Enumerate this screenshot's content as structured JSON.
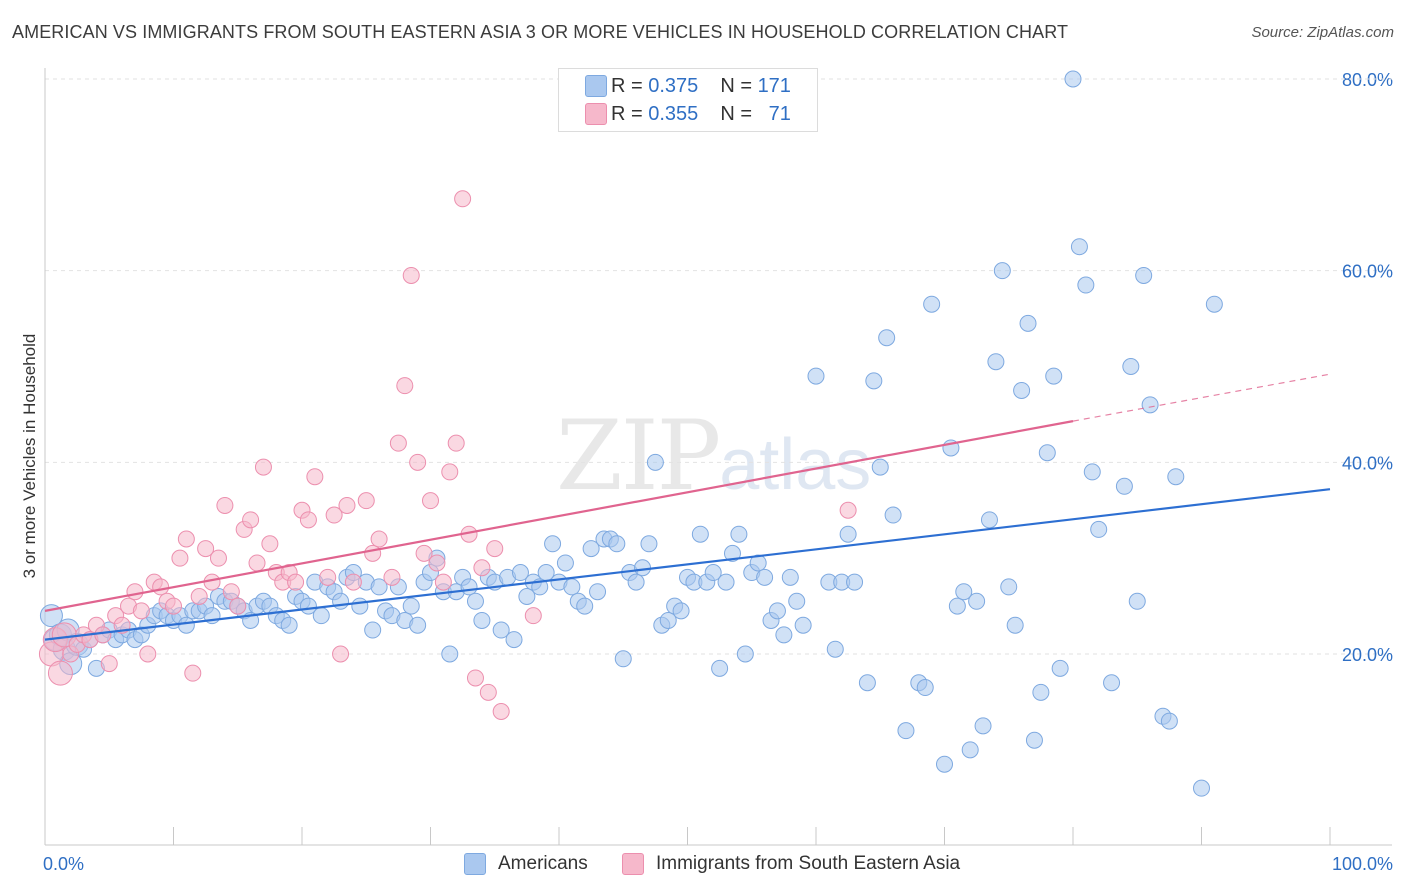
{
  "title": "AMERICAN VS IMMIGRANTS FROM SOUTH EASTERN ASIA 3 OR MORE VEHICLES IN HOUSEHOLD CORRELATION CHART",
  "source": "Source: ZipAtlas.com",
  "watermark": {
    "zip": "ZIP",
    "atlas": "atlas"
  },
  "legend": {
    "rows": [
      {
        "r_label": "R =",
        "r_value": "0.375",
        "n_label": "N =",
        "n_value": "171",
        "color": "#aac8ef"
      },
      {
        "r_label": "R =",
        "r_value": "0.355",
        "n_label": "N =",
        "n_value": "71",
        "color": "#f6b8cb"
      }
    ]
  },
  "bottom_legend": [
    {
      "label": "Americans",
      "color": "#aac8ef"
    },
    {
      "label": "Immigrants from South Eastern Asia",
      "color": "#f6b8cb"
    }
  ],
  "colors": {
    "blue_fill": "#aac8ef",
    "blue_stroke": "#7ea9e0",
    "blue_line": "#2d6fd2",
    "pink_fill": "#f6b8cb",
    "pink_stroke": "#ec8fae",
    "pink_line": "#e0648f",
    "tick_text": "#2f6fc4",
    "grid": "#e2e2e2"
  },
  "chart_data": {
    "type": "scatter",
    "title": "AMERICAN VS IMMIGRANTS FROM SOUTH EASTERN ASIA 3 OR MORE VEHICLES IN HOUSEHOLD CORRELATION CHART",
    "xlabel": "",
    "ylabel": "3 or more Vehicles in Household",
    "xlim": [
      0,
      100
    ],
    "ylim": [
      0,
      83
    ],
    "x_ticks": [
      "0.0%",
      "100.0%"
    ],
    "y_ticks": [
      {
        "value": 20,
        "label": "20.0%"
      },
      {
        "value": 40,
        "label": "40.0%"
      },
      {
        "value": 60,
        "label": "60.0%"
      },
      {
        "value": 80,
        "label": "80.0%"
      }
    ],
    "grid": true,
    "legend_position": "top-center",
    "series": [
      {
        "name": "Americans",
        "color": "#aac8ef",
        "trend": {
          "x": [
            0,
            100
          ],
          "y": [
            21.5,
            37.2
          ]
        },
        "points": [
          [
            0.5,
            24
          ],
          [
            0.8,
            21.5
          ],
          [
            1.2,
            22
          ],
          [
            1.5,
            20.5
          ],
          [
            1.8,
            22.5
          ],
          [
            2,
            19
          ],
          [
            2.5,
            21
          ],
          [
            3,
            20.5
          ],
          [
            3.5,
            21.5
          ],
          [
            4,
            18.5
          ],
          [
            4.5,
            22
          ],
          [
            5,
            22.5
          ],
          [
            5.5,
            21.5
          ],
          [
            6,
            22
          ],
          [
            6.5,
            22.5
          ],
          [
            7,
            21.5
          ],
          [
            7.5,
            22
          ],
          [
            8,
            23
          ],
          [
            8.5,
            24
          ],
          [
            9,
            24.5
          ],
          [
            9.5,
            24
          ],
          [
            10,
            23.5
          ],
          [
            10.5,
            24
          ],
          [
            11,
            23
          ],
          [
            11.5,
            24.5
          ],
          [
            12,
            24.5
          ],
          [
            12.5,
            25
          ],
          [
            13,
            24
          ],
          [
            13.5,
            26
          ],
          [
            14,
            25.5
          ],
          [
            14.5,
            25.5
          ],
          [
            15,
            25
          ],
          [
            15.5,
            24.5
          ],
          [
            16,
            23.5
          ],
          [
            16.5,
            25
          ],
          [
            17,
            25.5
          ],
          [
            17.5,
            25
          ],
          [
            18,
            24
          ],
          [
            18.5,
            23.5
          ],
          [
            19,
            23
          ],
          [
            19.5,
            26
          ],
          [
            20,
            25.5
          ],
          [
            20.5,
            25
          ],
          [
            21,
            27.5
          ],
          [
            21.5,
            24
          ],
          [
            22,
            27
          ],
          [
            22.5,
            26.5
          ],
          [
            23,
            25.5
          ],
          [
            23.5,
            28
          ],
          [
            24,
            28.5
          ],
          [
            24.5,
            25
          ],
          [
            25,
            27.5
          ],
          [
            25.5,
            22.5
          ],
          [
            26,
            27
          ],
          [
            26.5,
            24.5
          ],
          [
            27,
            24
          ],
          [
            27.5,
            27
          ],
          [
            28,
            23.5
          ],
          [
            28.5,
            25
          ],
          [
            29,
            23
          ],
          [
            29.5,
            27.5
          ],
          [
            30,
            28.5
          ],
          [
            30.5,
            30
          ],
          [
            31,
            26.5
          ],
          [
            31.5,
            20
          ],
          [
            32,
            26.5
          ],
          [
            32.5,
            28
          ],
          [
            33,
            27
          ],
          [
            33.5,
            25.5
          ],
          [
            34,
            23.5
          ],
          [
            34.5,
            28
          ],
          [
            35,
            27.5
          ],
          [
            35.5,
            22.5
          ],
          [
            36,
            28
          ],
          [
            36.5,
            21.5
          ],
          [
            37,
            28.5
          ],
          [
            37.5,
            26
          ],
          [
            38,
            27.5
          ],
          [
            38.5,
            27
          ],
          [
            39,
            28.5
          ],
          [
            39.5,
            31.5
          ],
          [
            40,
            27.5
          ],
          [
            40.5,
            29.5
          ],
          [
            41,
            27
          ],
          [
            41.5,
            25.5
          ],
          [
            42,
            25
          ],
          [
            42.5,
            31
          ],
          [
            43,
            26.5
          ],
          [
            43.5,
            32
          ],
          [
            44,
            32
          ],
          [
            44.5,
            31.5
          ],
          [
            45,
            19.5
          ],
          [
            45.5,
            28.5
          ],
          [
            46,
            27.5
          ],
          [
            46.5,
            29
          ],
          [
            47,
            31.5
          ],
          [
            47.5,
            40
          ],
          [
            48,
            23
          ],
          [
            48.5,
            23.5
          ],
          [
            49,
            25
          ],
          [
            49.5,
            24.5
          ],
          [
            50,
            28
          ],
          [
            50.5,
            27.5
          ],
          [
            51,
            32.5
          ],
          [
            51.5,
            27.5
          ],
          [
            52,
            28.5
          ],
          [
            52.5,
            18.5
          ],
          [
            53,
            27.5
          ],
          [
            53.5,
            30.5
          ],
          [
            54,
            32.5
          ],
          [
            54.5,
            20
          ],
          [
            55,
            28.5
          ],
          [
            55.5,
            29.5
          ],
          [
            56,
            28
          ],
          [
            56.5,
            23.5
          ],
          [
            57,
            24.5
          ],
          [
            57.5,
            22
          ],
          [
            58,
            28
          ],
          [
            58.5,
            25.5
          ],
          [
            59,
            23
          ],
          [
            60,
            49
          ],
          [
            61,
            27.5
          ],
          [
            61.5,
            20.5
          ],
          [
            62,
            27.5
          ],
          [
            62.5,
            32.5
          ],
          [
            63,
            27.5
          ],
          [
            64,
            17
          ],
          [
            64.5,
            48.5
          ],
          [
            65,
            39.5
          ],
          [
            65.5,
            53
          ],
          [
            66,
            34.5
          ],
          [
            67,
            12
          ],
          [
            68,
            17
          ],
          [
            68.5,
            16.5
          ],
          [
            69,
            56.5
          ],
          [
            70,
            8.5
          ],
          [
            70.5,
            41.5
          ],
          [
            71,
            25
          ],
          [
            71.5,
            26.5
          ],
          [
            72,
            10
          ],
          [
            72.5,
            25.5
          ],
          [
            73,
            12.5
          ],
          [
            73.5,
            34
          ],
          [
            74,
            50.5
          ],
          [
            74.5,
            60
          ],
          [
            75,
            27
          ],
          [
            75.5,
            23
          ],
          [
            76,
            47.5
          ],
          [
            76.5,
            54.5
          ],
          [
            77,
            11
          ],
          [
            77.5,
            16
          ],
          [
            78,
            41
          ],
          [
            78.5,
            49
          ],
          [
            79,
            18.5
          ],
          [
            80,
            80
          ],
          [
            80.5,
            62.5
          ],
          [
            81,
            58.5
          ],
          [
            81.5,
            39
          ],
          [
            82,
            33
          ],
          [
            83,
            17
          ],
          [
            84,
            37.5
          ],
          [
            84.5,
            50
          ],
          [
            85,
            25.5
          ],
          [
            85.5,
            59.5
          ],
          [
            86,
            46
          ],
          [
            87,
            13.5
          ],
          [
            87.5,
            13
          ],
          [
            88,
            38.5
          ],
          [
            90,
            6
          ],
          [
            91,
            56.5
          ]
        ]
      },
      {
        "name": "Immigrants from South Eastern Asia",
        "color": "#f6b8cb",
        "trend": {
          "x": [
            0,
            80
          ],
          "y": [
            24.5,
            44.3
          ]
        },
        "trend_dashed": {
          "x": [
            80,
            100
          ],
          "y": [
            44.3,
            49.2
          ]
        },
        "points": [
          [
            0.5,
            20
          ],
          [
            0.8,
            21.5
          ],
          [
            1.2,
            18
          ],
          [
            1.5,
            22
          ],
          [
            2,
            20
          ],
          [
            2.5,
            21
          ],
          [
            3,
            22
          ],
          [
            3.5,
            21.5
          ],
          [
            4,
            23
          ],
          [
            4.5,
            22
          ],
          [
            5,
            19
          ],
          [
            5.5,
            24
          ],
          [
            6,
            23
          ],
          [
            6.5,
            25
          ],
          [
            7,
            26.5
          ],
          [
            7.5,
            24.5
          ],
          [
            8,
            20
          ],
          [
            8.5,
            27.5
          ],
          [
            9,
            27
          ],
          [
            9.5,
            25.5
          ],
          [
            10,
            25
          ],
          [
            10.5,
            30
          ],
          [
            11,
            32
          ],
          [
            11.5,
            18
          ],
          [
            12,
            26
          ],
          [
            12.5,
            31
          ],
          [
            13,
            27.5
          ],
          [
            13.5,
            30
          ],
          [
            14,
            35.5
          ],
          [
            14.5,
            26.5
          ],
          [
            15,
            25
          ],
          [
            15.5,
            33
          ],
          [
            16,
            34
          ],
          [
            16.5,
            29.5
          ],
          [
            17,
            39.5
          ],
          [
            17.5,
            31.5
          ],
          [
            18,
            28.5
          ],
          [
            18.5,
            27.5
          ],
          [
            19,
            28.5
          ],
          [
            19.5,
            27.5
          ],
          [
            20,
            35
          ],
          [
            20.5,
            34
          ],
          [
            21,
            38.5
          ],
          [
            22,
            28
          ],
          [
            22.5,
            34.5
          ],
          [
            23,
            20
          ],
          [
            23.5,
            35.5
          ],
          [
            24,
            27.5
          ],
          [
            25,
            36
          ],
          [
            25.5,
            30.5
          ],
          [
            26,
            32
          ],
          [
            27,
            28
          ],
          [
            27.5,
            42
          ],
          [
            28,
            48
          ],
          [
            28.5,
            59.5
          ],
          [
            29,
            40
          ],
          [
            29.5,
            30.5
          ],
          [
            30,
            36
          ],
          [
            30.5,
            29.5
          ],
          [
            31,
            27.5
          ],
          [
            31.5,
            39
          ],
          [
            32,
            42
          ],
          [
            32.5,
            67.5
          ],
          [
            33,
            32.5
          ],
          [
            33.5,
            17.5
          ],
          [
            34,
            29
          ],
          [
            34.5,
            16
          ],
          [
            35,
            31
          ],
          [
            35.5,
            14
          ],
          [
            38,
            24
          ],
          [
            62.5,
            35
          ]
        ]
      }
    ]
  }
}
